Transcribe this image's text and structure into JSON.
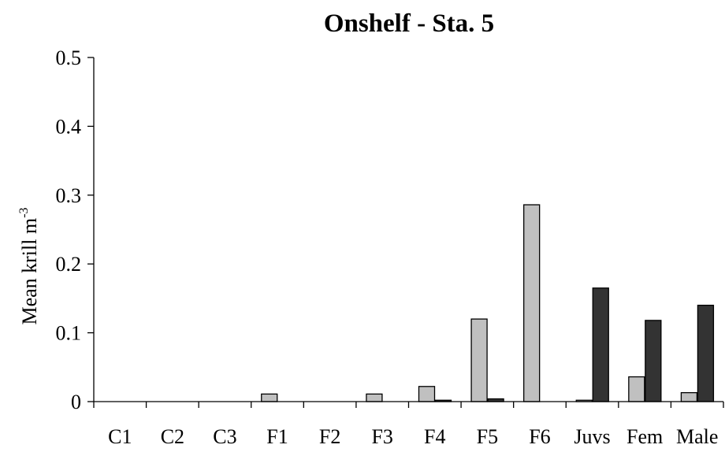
{
  "chart_data": {
    "type": "bar",
    "title": "Onshelf - Sta. 5",
    "ylabel": "Mean krill m",
    "ylabel_superscript": "-3",
    "xlabel": "",
    "categories": [
      "C1",
      "C2",
      "C3",
      "F1",
      "F2",
      "F3",
      "F4",
      "F5",
      "F6",
      "Juvs",
      "Fem",
      "Male"
    ],
    "series": [
      {
        "color": "#c0c0c0",
        "values": [
          0,
          0,
          0,
          0.011,
          0,
          0.011,
          0.022,
          0.12,
          0.286,
          0.002,
          0.036,
          0.013
        ]
      },
      {
        "color": "#333333",
        "values": [
          0,
          0,
          0,
          0,
          0,
          0,
          0.002,
          0.004,
          0,
          0.165,
          0.118,
          0.14
        ]
      }
    ],
    "ylim": [
      0,
      0.5
    ],
    "yticks": [
      "0",
      "0.1",
      "0.2",
      "0.3",
      "0.4",
      "0.5"
    ],
    "grid": false,
    "legend": "none"
  }
}
